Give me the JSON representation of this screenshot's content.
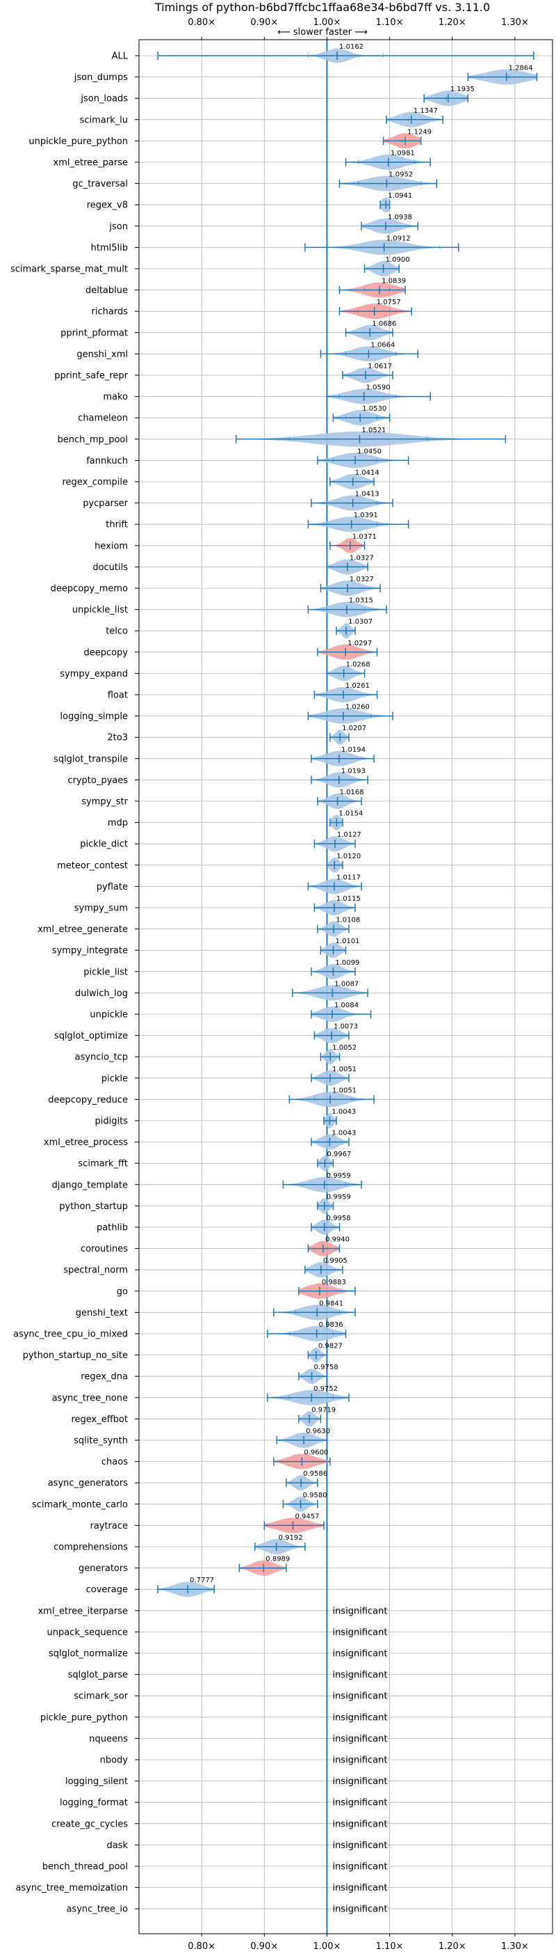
{
  "chart_data": {
    "type": "violin",
    "title": "Timings of python-b6bd7ffcbc1ffaa68e34-b6bd7ff vs. 3.11.0",
    "subtitle": "⟵ slower     faster ⟶",
    "xlim": [
      0.7,
      1.36
    ],
    "xticks": [
      0.8,
      0.9,
      1.0,
      1.1,
      1.2,
      1.3
    ],
    "xtick_labels": [
      "0.80×",
      "0.90×",
      "1.00×",
      "1.10×",
      "1.20×",
      "1.30×"
    ],
    "reference_line": 1.0,
    "insignificant_label": "insignificant",
    "colors": {
      "violin": "#a8c6e6",
      "violin_sig": "#f4a0a0",
      "line": "#1f77b4",
      "grid": "#b0b0b0",
      "text": "#000000"
    },
    "benchmarks": [
      {
        "name": "ALL",
        "value": 1.0162,
        "min": 0.73,
        "max": 1.33,
        "spread": 0.025,
        "ticks": [
          0.97,
          1.09
        ],
        "sig": false
      },
      {
        "name": "json_dumps",
        "value": 1.2864,
        "min": 1.225,
        "max": 1.335,
        "spread": 0.045,
        "ticks": [
          1.29
        ],
        "sig": false
      },
      {
        "name": "json_loads",
        "value": 1.1935,
        "min": 1.155,
        "max": 1.225,
        "spread": 0.03,
        "ticks": [
          1.19
        ],
        "sig": false
      },
      {
        "name": "scimark_lu",
        "value": 1.1347,
        "min": 1.095,
        "max": 1.185,
        "spread": 0.03,
        "ticks": [
          1.13
        ],
        "sig": false
      },
      {
        "name": "unpickle_pure_python",
        "value": 1.1249,
        "min": 1.09,
        "max": 1.15,
        "spread": 0.025,
        "ticks": [
          1.12
        ],
        "sig": true
      },
      {
        "name": "xml_etree_parse",
        "value": 1.0981,
        "min": 1.03,
        "max": 1.165,
        "spread": 0.035,
        "ticks": [
          1.05,
          1.14
        ],
        "sig": false
      },
      {
        "name": "gc_traversal",
        "value": 1.0952,
        "min": 1.02,
        "max": 1.175,
        "spread": 0.045,
        "ticks": [
          1.05,
          1.15
        ],
        "sig": false
      },
      {
        "name": "regex_v8",
        "value": 1.0941,
        "min": 1.085,
        "max": 1.1,
        "spread": 0.01,
        "ticks": [],
        "sig": false
      },
      {
        "name": "json",
        "value": 1.0938,
        "min": 1.055,
        "max": 1.145,
        "spread": 0.03,
        "ticks": [],
        "sig": false
      },
      {
        "name": "html5lib",
        "value": 1.0912,
        "min": 0.965,
        "max": 1.21,
        "spread": 0.05,
        "ticks": [
          1.0,
          1.18
        ],
        "sig": false
      },
      {
        "name": "scimark_sparse_mat_mult",
        "value": 1.09,
        "min": 1.06,
        "max": 1.115,
        "spread": 0.02,
        "ticks": [],
        "sig": false
      },
      {
        "name": "deltablue",
        "value": 1.0839,
        "min": 1.02,
        "max": 1.125,
        "spread": 0.035,
        "ticks": [
          1.06,
          1.1
        ],
        "sig": true
      },
      {
        "name": "richards",
        "value": 1.0757,
        "min": 1.02,
        "max": 1.135,
        "spread": 0.035,
        "ticks": [
          1.05,
          1.1
        ],
        "sig": true
      },
      {
        "name": "pprint_pformat",
        "value": 1.0686,
        "min": 1.03,
        "max": 1.105,
        "spread": 0.025,
        "ticks": [],
        "sig": false
      },
      {
        "name": "genshi_xml",
        "value": 1.0664,
        "min": 0.99,
        "max": 1.145,
        "spread": 0.035,
        "ticks": [
          1.03,
          1.11
        ],
        "sig": false
      },
      {
        "name": "pprint_safe_repr",
        "value": 1.0617,
        "min": 1.025,
        "max": 1.105,
        "spread": 0.025,
        "ticks": [],
        "sig": false
      },
      {
        "name": "mako",
        "value": 1.059,
        "min": 1.0,
        "max": 1.165,
        "spread": 0.04,
        "ticks": [
          1.02,
          1.11
        ],
        "sig": false
      },
      {
        "name": "chameleon",
        "value": 1.053,
        "min": 1.01,
        "max": 1.1,
        "spread": 0.03,
        "ticks": [
          1.03,
          1.08
        ],
        "sig": false
      },
      {
        "name": "bench_mp_pool",
        "value": 1.0521,
        "min": 0.855,
        "max": 1.285,
        "spread": 0.1,
        "ticks": [
          0.94,
          1.16
        ],
        "sig": false
      },
      {
        "name": "fannkuch",
        "value": 1.045,
        "min": 0.985,
        "max": 1.13,
        "spread": 0.04,
        "ticks": [
          1.01,
          1.08
        ],
        "sig": false
      },
      {
        "name": "regex_compile",
        "value": 1.0414,
        "min": 1.005,
        "max": 1.075,
        "spread": 0.025,
        "ticks": [],
        "sig": false
      },
      {
        "name": "pycparser",
        "value": 1.0413,
        "min": 0.975,
        "max": 1.105,
        "spread": 0.035,
        "ticks": [
          1.0,
          1.08
        ],
        "sig": false
      },
      {
        "name": "thrift",
        "value": 1.0391,
        "min": 0.97,
        "max": 1.13,
        "spread": 0.04,
        "ticks": [
          1.0,
          1.08
        ],
        "sig": false
      },
      {
        "name": "hexiom",
        "value": 1.0371,
        "min": 1.005,
        "max": 1.06,
        "spread": 0.015,
        "ticks": [],
        "sig": true
      },
      {
        "name": "docutils",
        "value": 1.0327,
        "min": 1.0,
        "max": 1.065,
        "spread": 0.025,
        "ticks": [],
        "sig": false
      },
      {
        "name": "deepcopy_memo",
        "value": 1.0327,
        "min": 0.99,
        "max": 1.085,
        "spread": 0.03,
        "ticks": [],
        "sig": false
      },
      {
        "name": "unpickle_list",
        "value": 1.0315,
        "min": 0.97,
        "max": 1.095,
        "spread": 0.035,
        "ticks": [
          1.0,
          1.06
        ],
        "sig": false
      },
      {
        "name": "telco",
        "value": 1.0307,
        "min": 1.015,
        "max": 1.045,
        "spread": 0.01,
        "ticks": [],
        "sig": false
      },
      {
        "name": "deepcopy",
        "value": 1.0297,
        "min": 0.985,
        "max": 1.08,
        "spread": 0.03,
        "ticks": [],
        "sig": true
      },
      {
        "name": "sympy_expand",
        "value": 1.0268,
        "min": 1.0,
        "max": 1.06,
        "spread": 0.02,
        "ticks": [],
        "sig": false
      },
      {
        "name": "float",
        "value": 1.0261,
        "min": 0.98,
        "max": 1.08,
        "spread": 0.03,
        "ticks": [],
        "sig": false
      },
      {
        "name": "logging_simple",
        "value": 1.026,
        "min": 0.97,
        "max": 1.105,
        "spread": 0.04,
        "ticks": [
          1.0,
          1.07
        ],
        "sig": false
      },
      {
        "name": "2to3",
        "value": 1.0207,
        "min": 1.005,
        "max": 1.035,
        "spread": 0.01,
        "ticks": [],
        "sig": false
      },
      {
        "name": "sqlglot_transpile",
        "value": 1.0194,
        "min": 0.975,
        "max": 1.075,
        "spread": 0.03,
        "ticks": [],
        "sig": false
      },
      {
        "name": "crypto_pyaes",
        "value": 1.0193,
        "min": 0.975,
        "max": 1.065,
        "spread": 0.025,
        "ticks": [],
        "sig": false
      },
      {
        "name": "sympy_str",
        "value": 1.0168,
        "min": 0.985,
        "max": 1.055,
        "spread": 0.02,
        "ticks": [],
        "sig": false
      },
      {
        "name": "mdp",
        "value": 1.0154,
        "min": 1.005,
        "max": 1.025,
        "spread": 0.01,
        "ticks": [],
        "sig": false
      },
      {
        "name": "pickle_dict",
        "value": 1.0127,
        "min": 0.98,
        "max": 1.045,
        "spread": 0.02,
        "ticks": [],
        "sig": false
      },
      {
        "name": "meteor_contest",
        "value": 1.012,
        "min": 1.0,
        "max": 1.025,
        "spread": 0.01,
        "ticks": [],
        "sig": false
      },
      {
        "name": "pyflate",
        "value": 1.0117,
        "min": 0.97,
        "max": 1.055,
        "spread": 0.025,
        "ticks": [],
        "sig": false
      },
      {
        "name": "sympy_sum",
        "value": 1.0115,
        "min": 0.98,
        "max": 1.045,
        "spread": 0.02,
        "ticks": [],
        "sig": false
      },
      {
        "name": "xml_etree_generate",
        "value": 1.0108,
        "min": 0.985,
        "max": 1.035,
        "spread": 0.015,
        "ticks": [],
        "sig": false
      },
      {
        "name": "sympy_integrate",
        "value": 1.0101,
        "min": 0.99,
        "max": 1.03,
        "spread": 0.015,
        "ticks": [],
        "sig": false
      },
      {
        "name": "pickle_list",
        "value": 1.0099,
        "min": 0.975,
        "max": 1.045,
        "spread": 0.02,
        "ticks": [],
        "sig": false
      },
      {
        "name": "dulwich_log",
        "value": 1.0087,
        "min": 0.945,
        "max": 1.065,
        "spread": 0.035,
        "ticks": [],
        "sig": false
      },
      {
        "name": "unpickle",
        "value": 1.0084,
        "min": 0.975,
        "max": 1.07,
        "spread": 0.025,
        "ticks": [],
        "sig": false
      },
      {
        "name": "sqlglot_optimize",
        "value": 1.0073,
        "min": 0.98,
        "max": 1.035,
        "spread": 0.02,
        "ticks": [],
        "sig": false
      },
      {
        "name": "asyncio_tcp",
        "value": 1.0052,
        "min": 0.99,
        "max": 1.02,
        "spread": 0.01,
        "ticks": [],
        "sig": false
      },
      {
        "name": "pickle",
        "value": 1.0051,
        "min": 0.975,
        "max": 1.035,
        "spread": 0.02,
        "ticks": [],
        "sig": false
      },
      {
        "name": "deepcopy_reduce",
        "value": 1.0051,
        "min": 0.94,
        "max": 1.075,
        "spread": 0.035,
        "ticks": [
          0.98,
          1.04
        ],
        "sig": false
      },
      {
        "name": "pidigits",
        "value": 1.0043,
        "min": 0.995,
        "max": 1.015,
        "spread": 0.008,
        "ticks": [],
        "sig": false
      },
      {
        "name": "xml_etree_process",
        "value": 1.0043,
        "min": 0.975,
        "max": 1.035,
        "spread": 0.02,
        "ticks": [],
        "sig": false
      },
      {
        "name": "scimark_fft",
        "value": 0.9967,
        "min": 0.985,
        "max": 1.01,
        "spread": 0.01,
        "ticks": [],
        "sig": false
      },
      {
        "name": "django_template",
        "value": 0.9959,
        "min": 0.93,
        "max": 1.055,
        "spread": 0.035,
        "ticks": [
          0.96,
          1.03
        ],
        "sig": false
      },
      {
        "name": "python_startup",
        "value": 0.9959,
        "min": 0.985,
        "max": 1.01,
        "spread": 0.01,
        "ticks": [],
        "sig": false
      },
      {
        "name": "pathlib",
        "value": 0.9958,
        "min": 0.975,
        "max": 1.02,
        "spread": 0.015,
        "ticks": [],
        "sig": false
      },
      {
        "name": "coroutines",
        "value": 0.994,
        "min": 0.97,
        "max": 1.02,
        "spread": 0.02,
        "ticks": [],
        "sig": true
      },
      {
        "name": "spectral_norm",
        "value": 0.9905,
        "min": 0.965,
        "max": 1.025,
        "spread": 0.02,
        "ticks": [],
        "sig": false
      },
      {
        "name": "go",
        "value": 0.9883,
        "min": 0.955,
        "max": 1.045,
        "spread": 0.03,
        "ticks": [],
        "sig": true
      },
      {
        "name": "genshi_text",
        "value": 0.9841,
        "min": 0.915,
        "max": 1.045,
        "spread": 0.035,
        "ticks": [
          0.95,
          1.02
        ],
        "sig": false
      },
      {
        "name": "async_tree_cpu_io_mixed",
        "value": 0.9836,
        "min": 0.905,
        "max": 1.03,
        "spread": 0.035,
        "ticks": [
          0.94,
          1.01
        ],
        "sig": false
      },
      {
        "name": "python_startup_no_site",
        "value": 0.9827,
        "min": 0.97,
        "max": 1.0,
        "spread": 0.01,
        "ticks": [],
        "sig": false
      },
      {
        "name": "regex_dna",
        "value": 0.9758,
        "min": 0.955,
        "max": 1.0,
        "spread": 0.015,
        "ticks": [],
        "sig": false
      },
      {
        "name": "async_tree_none",
        "value": 0.9752,
        "min": 0.905,
        "max": 1.035,
        "spread": 0.04,
        "ticks": [
          0.94,
          1.01
        ],
        "sig": false
      },
      {
        "name": "regex_effbot",
        "value": 0.9719,
        "min": 0.955,
        "max": 0.99,
        "spread": 0.012,
        "ticks": [],
        "sig": false
      },
      {
        "name": "sqlite_synth",
        "value": 0.963,
        "min": 0.92,
        "max": 1.0,
        "spread": 0.025,
        "ticks": [],
        "sig": false
      },
      {
        "name": "chaos",
        "value": 0.96,
        "min": 0.915,
        "max": 1.005,
        "spread": 0.03,
        "ticks": [],
        "sig": true
      },
      {
        "name": "async_generators",
        "value": 0.9586,
        "min": 0.935,
        "max": 0.985,
        "spread": 0.015,
        "ticks": [],
        "sig": false
      },
      {
        "name": "scimark_monte_carlo",
        "value": 0.958,
        "min": 0.93,
        "max": 0.985,
        "spread": 0.015,
        "ticks": [],
        "sig": false
      },
      {
        "name": "raytrace",
        "value": 0.9457,
        "min": 0.9,
        "max": 0.995,
        "spread": 0.035,
        "ticks": [],
        "sig": true
      },
      {
        "name": "comprehensions",
        "value": 0.9192,
        "min": 0.885,
        "max": 0.965,
        "spread": 0.025,
        "ticks": [],
        "sig": false
      },
      {
        "name": "generators",
        "value": 0.8989,
        "min": 0.86,
        "max": 0.935,
        "spread": 0.025,
        "ticks": [],
        "sig": true
      },
      {
        "name": "coverage",
        "value": 0.7777,
        "min": 0.73,
        "max": 0.82,
        "spread": 0.03,
        "ticks": [],
        "sig": false
      },
      {
        "name": "xml_etree_iterparse",
        "insignificant": true
      },
      {
        "name": "unpack_sequence",
        "insignificant": true
      },
      {
        "name": "sqlglot_normalize",
        "insignificant": true
      },
      {
        "name": "sqlglot_parse",
        "insignificant": true
      },
      {
        "name": "scimark_sor",
        "insignificant": true
      },
      {
        "name": "pickle_pure_python",
        "insignificant": true
      },
      {
        "name": "nqueens",
        "insignificant": true
      },
      {
        "name": "nbody",
        "insignificant": true
      },
      {
        "name": "logging_silent",
        "insignificant": true
      },
      {
        "name": "logging_format",
        "insignificant": true
      },
      {
        "name": "create_gc_cycles",
        "insignificant": true
      },
      {
        "name": "dask",
        "insignificant": true
      },
      {
        "name": "bench_thread_pool",
        "insignificant": true
      },
      {
        "name": "async_tree_memoization",
        "insignificant": true
      },
      {
        "name": "async_tree_io",
        "insignificant": true
      }
    ]
  }
}
